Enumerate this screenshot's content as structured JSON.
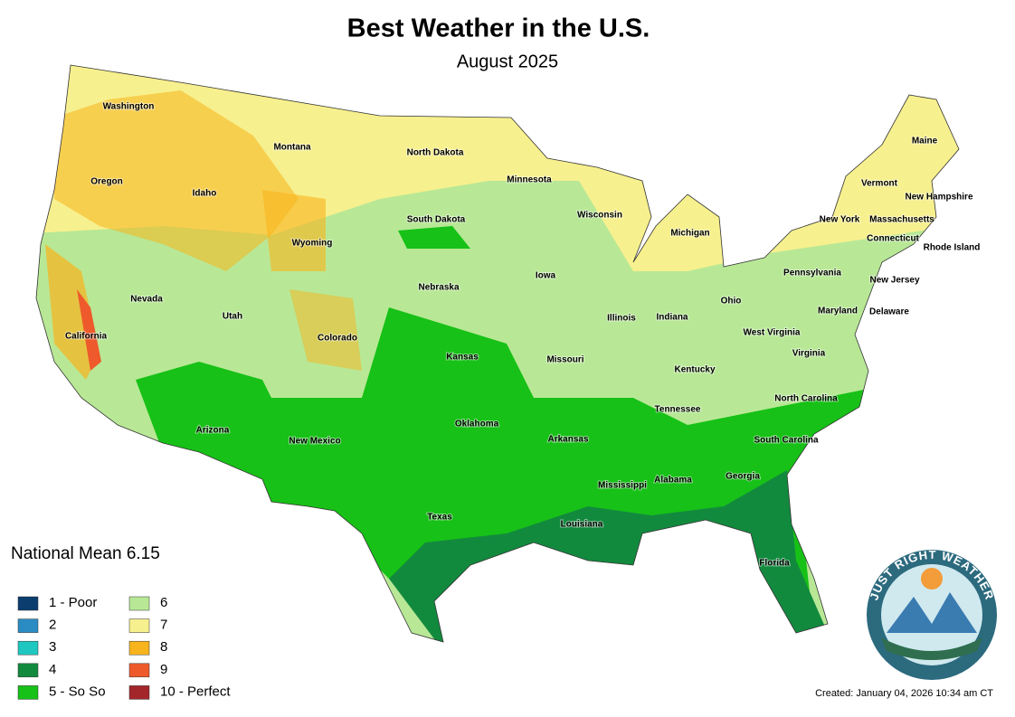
{
  "header": {
    "title": "Best Weather in the U.S.",
    "subtitle": "August 2025"
  },
  "states": [
    "Washington",
    "Oregon",
    "California",
    "Nevada",
    "Idaho",
    "Montana",
    "Wyoming",
    "Utah",
    "Arizona",
    "Colorado",
    "New Mexico",
    "North Dakota",
    "South Dakota",
    "Nebraska",
    "Kansas",
    "Oklahoma",
    "Texas",
    "Minnesota",
    "Iowa",
    "Missouri",
    "Arkansas",
    "Louisiana",
    "Wisconsin",
    "Illinois",
    "Michigan",
    "Indiana",
    "Ohio",
    "Kentucky",
    "Tennessee",
    "Mississippi",
    "Alabama",
    "Georgia",
    "Florida",
    "South Carolina",
    "North Carolina",
    "Virginia",
    "West Virginia",
    "Maryland",
    "Delaware",
    "Pennsylvania",
    "New Jersey",
    "New York",
    "Connecticut",
    "Rhode Island",
    "Massachusetts",
    "Vermont",
    "New Hampshire",
    "Maine"
  ],
  "national_mean": {
    "label": "National Mean",
    "value": 6.15
  },
  "legend": [
    {
      "label": "1 - Poor",
      "color": "#0b3d6e"
    },
    {
      "label": "2",
      "color": "#2b8cc4"
    },
    {
      "label": "3",
      "color": "#1ec8c0"
    },
    {
      "label": "4",
      "color": "#128a3e"
    },
    {
      "label": "5 - So So",
      "color": "#17c117"
    },
    {
      "label": "6",
      "color": "#b8e896"
    },
    {
      "label": "7",
      "color": "#f7f08e"
    },
    {
      "label": "8",
      "color": "#f8b41c"
    },
    {
      "label": "9",
      "color": "#ee5a2c"
    },
    {
      "label": "10 - Perfect",
      "color": "#a3262a"
    }
  ],
  "logo_text": "JUST RIGHT WEATHER",
  "footer": {
    "created": "Created: January 04, 2026 10:34 am CT"
  }
}
